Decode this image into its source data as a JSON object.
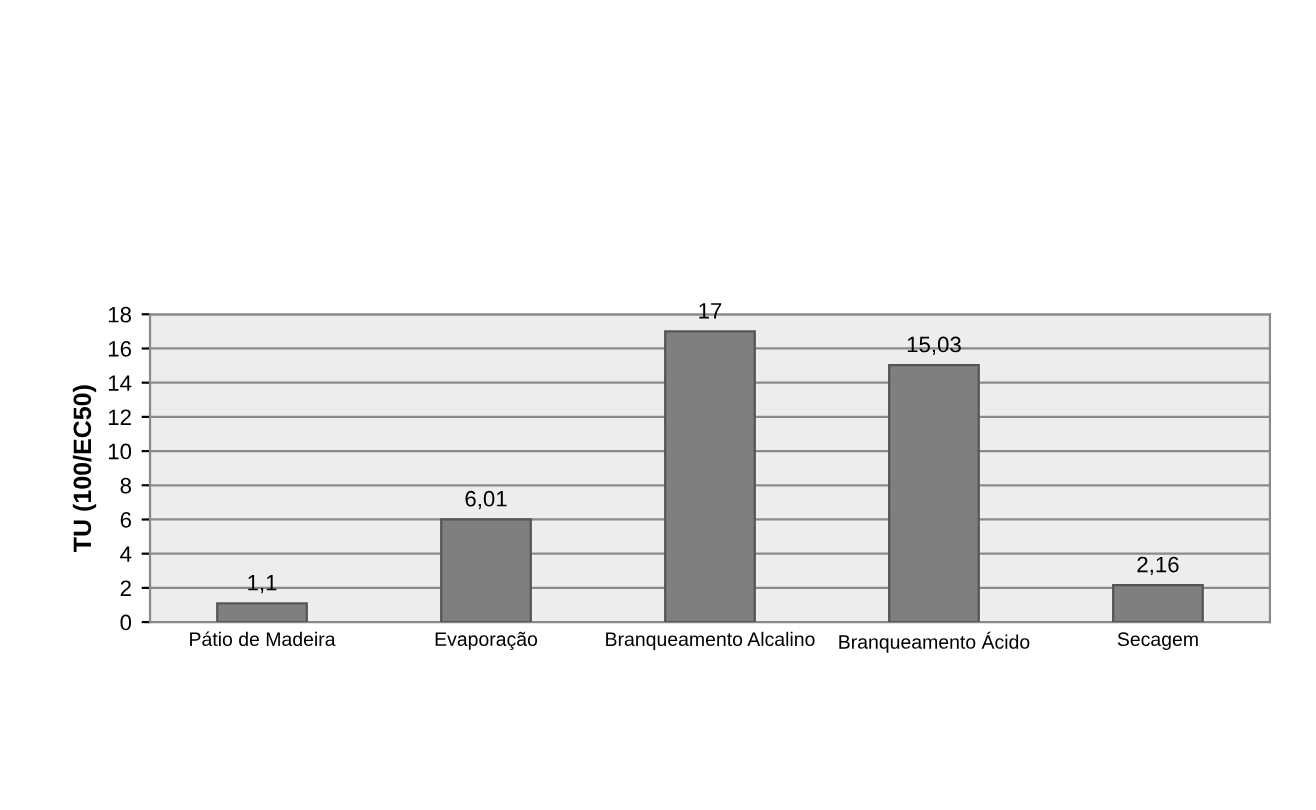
{
  "chart_data": {
    "type": "bar",
    "ylabel": "TU (100/EC50)",
    "categories": [
      "Pátio de Madeira",
      "Evaporação",
      "Branqueamento Alcalino",
      "Branqueamento Ácido",
      "Secagem"
    ],
    "values": [
      1.1,
      6.01,
      17,
      15.03,
      2.16
    ],
    "value_labels": [
      "1,1",
      "6,01",
      "17",
      "15,03",
      "2,16"
    ],
    "color": "#7f7f7f",
    "ylim": [
      0,
      18
    ],
    "yticks": [
      0,
      2,
      4,
      6,
      8,
      10,
      12,
      14,
      16,
      18
    ],
    "grid": "y"
  }
}
